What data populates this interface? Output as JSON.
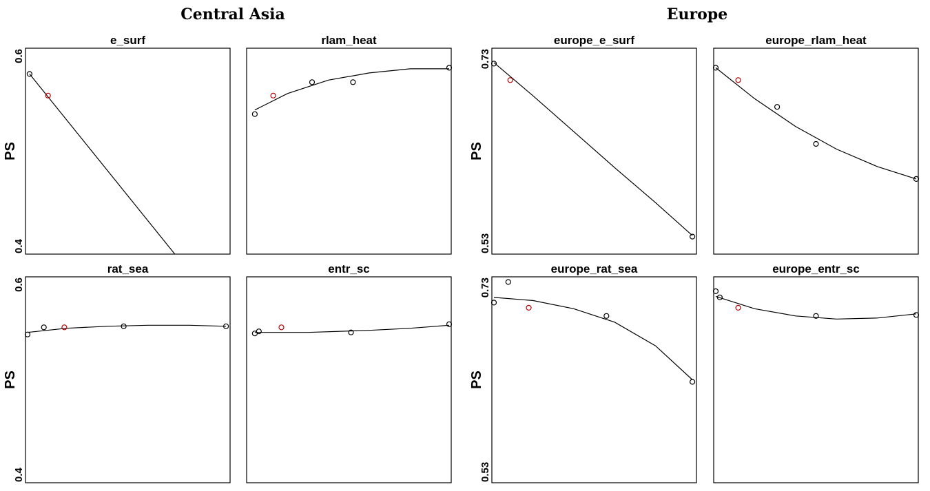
{
  "region_titles": {
    "left": "Central Asia",
    "right": "Europe"
  },
  "ylabel": "PS",
  "colors": {
    "point": "#000000",
    "highlight": "#b30000",
    "line": "#000000"
  },
  "chart_data": [
    {
      "type": "scatter",
      "title": "e_surf",
      "region": "Central Asia",
      "row": 0,
      "col": 0,
      "ylim": [
        0.4,
        0.6
      ],
      "yticks": [
        "0.4",
        "0.6"
      ],
      "xlim": [
        0,
        1
      ],
      "points": [
        {
          "x": 0.02,
          "y": 0.575
        },
        {
          "x": 0.11,
          "y": 0.554,
          "highlight": true
        }
      ],
      "fit": [
        {
          "x": 0.02,
          "y": 0.575
        },
        {
          "x": 0.73,
          "y": 0.4
        }
      ]
    },
    {
      "type": "scatter",
      "title": "rlam_heat",
      "region": "Central Asia",
      "row": 0,
      "col": 1,
      "ylim": [
        0.4,
        0.6
      ],
      "yticks": [],
      "xlim": [
        0,
        1
      ],
      "points": [
        {
          "x": 0.04,
          "y": 0.536
        },
        {
          "x": 0.13,
          "y": 0.554,
          "highlight": true
        },
        {
          "x": 0.32,
          "y": 0.567
        },
        {
          "x": 0.52,
          "y": 0.567
        },
        {
          "x": 0.99,
          "y": 0.581
        }
      ],
      "fit": [
        {
          "x": 0.04,
          "y": 0.54
        },
        {
          "x": 0.2,
          "y": 0.556
        },
        {
          "x": 0.4,
          "y": 0.569
        },
        {
          "x": 0.6,
          "y": 0.576
        },
        {
          "x": 0.8,
          "y": 0.58
        },
        {
          "x": 0.99,
          "y": 0.58
        }
      ]
    },
    {
      "type": "scatter",
      "title": "rat_sea",
      "region": "Central Asia",
      "row": 1,
      "col": 0,
      "ylim": [
        0.4,
        0.6
      ],
      "yticks": [
        "0.4",
        "0.6"
      ],
      "xlim": [
        0,
        1
      ],
      "points": [
        {
          "x": 0.01,
          "y": 0.544
        },
        {
          "x": 0.09,
          "y": 0.551
        },
        {
          "x": 0.19,
          "y": 0.551,
          "highlight": true
        },
        {
          "x": 0.48,
          "y": 0.552
        },
        {
          "x": 0.98,
          "y": 0.552
        }
      ],
      "fit": [
        {
          "x": 0.01,
          "y": 0.546
        },
        {
          "x": 0.2,
          "y": 0.55
        },
        {
          "x": 0.4,
          "y": 0.552
        },
        {
          "x": 0.6,
          "y": 0.553
        },
        {
          "x": 0.8,
          "y": 0.553
        },
        {
          "x": 0.98,
          "y": 0.552
        }
      ]
    },
    {
      "type": "scatter",
      "title": "entr_sc",
      "region": "Central Asia",
      "row": 1,
      "col": 1,
      "ylim": [
        0.4,
        0.6
      ],
      "yticks": [],
      "xlim": [
        0,
        1
      ],
      "points": [
        {
          "x": 0.04,
          "y": 0.545
        },
        {
          "x": 0.06,
          "y": 0.547
        },
        {
          "x": 0.17,
          "y": 0.551,
          "highlight": true
        },
        {
          "x": 0.51,
          "y": 0.546
        },
        {
          "x": 0.99,
          "y": 0.554
        }
      ],
      "fit": [
        {
          "x": 0.04,
          "y": 0.546
        },
        {
          "x": 0.3,
          "y": 0.546
        },
        {
          "x": 0.6,
          "y": 0.548
        },
        {
          "x": 0.8,
          "y": 0.55
        },
        {
          "x": 0.99,
          "y": 0.553
        }
      ]
    },
    {
      "type": "scatter",
      "title": "europe_e_surf",
      "region": "Europe",
      "row": 0,
      "col": 2,
      "ylim": [
        0.53,
        0.73
      ],
      "yticks": [
        "0.53",
        "0.73"
      ],
      "xlim": [
        0,
        1
      ],
      "points": [
        {
          "x": 0.01,
          "y": 0.715
        },
        {
          "x": 0.09,
          "y": 0.699,
          "highlight": true
        },
        {
          "x": 0.98,
          "y": 0.547
        }
      ],
      "fit": [
        {
          "x": 0.01,
          "y": 0.716
        },
        {
          "x": 0.2,
          "y": 0.684
        },
        {
          "x": 0.4,
          "y": 0.649
        },
        {
          "x": 0.6,
          "y": 0.614
        },
        {
          "x": 0.8,
          "y": 0.58
        },
        {
          "x": 0.98,
          "y": 0.548
        }
      ]
    },
    {
      "type": "scatter",
      "title": "europe_rlam_heat",
      "region": "Europe",
      "row": 0,
      "col": 3,
      "ylim": [
        0.53,
        0.73
      ],
      "yticks": [],
      "xlim": [
        0,
        1
      ],
      "points": [
        {
          "x": 0.01,
          "y": 0.711
        },
        {
          "x": 0.12,
          "y": 0.699,
          "highlight": true
        },
        {
          "x": 0.31,
          "y": 0.673
        },
        {
          "x": 0.5,
          "y": 0.637
        },
        {
          "x": 0.99,
          "y": 0.603
        }
      ],
      "fit": [
        {
          "x": 0.01,
          "y": 0.711
        },
        {
          "x": 0.2,
          "y": 0.681
        },
        {
          "x": 0.4,
          "y": 0.654
        },
        {
          "x": 0.6,
          "y": 0.632
        },
        {
          "x": 0.8,
          "y": 0.615
        },
        {
          "x": 0.99,
          "y": 0.603
        }
      ]
    },
    {
      "type": "scatter",
      "title": "europe_rat_sea",
      "region": "Europe",
      "row": 1,
      "col": 2,
      "ylim": [
        0.53,
        0.73
      ],
      "yticks": [
        "0.53",
        "0.73"
      ],
      "xlim": [
        0,
        1
      ],
      "points": [
        {
          "x": 0.01,
          "y": 0.705
        },
        {
          "x": 0.08,
          "y": 0.725
        },
        {
          "x": 0.18,
          "y": 0.7,
          "highlight": true
        },
        {
          "x": 0.56,
          "y": 0.692
        },
        {
          "x": 0.98,
          "y": 0.628
        }
      ],
      "fit": [
        {
          "x": 0.01,
          "y": 0.71
        },
        {
          "x": 0.2,
          "y": 0.707
        },
        {
          "x": 0.4,
          "y": 0.699
        },
        {
          "x": 0.6,
          "y": 0.686
        },
        {
          "x": 0.8,
          "y": 0.663
        },
        {
          "x": 0.98,
          "y": 0.63
        }
      ]
    },
    {
      "type": "scatter",
      "title": "europe_entr_sc",
      "region": "Europe",
      "row": 1,
      "col": 3,
      "ylim": [
        0.53,
        0.73
      ],
      "yticks": [],
      "xlim": [
        0,
        1
      ],
      "points": [
        {
          "x": 0.01,
          "y": 0.716
        },
        {
          "x": 0.03,
          "y": 0.71
        },
        {
          "x": 0.12,
          "y": 0.7,
          "highlight": true
        },
        {
          "x": 0.5,
          "y": 0.692
        },
        {
          "x": 0.99,
          "y": 0.693
        }
      ],
      "fit": [
        {
          "x": 0.01,
          "y": 0.711
        },
        {
          "x": 0.2,
          "y": 0.699
        },
        {
          "x": 0.4,
          "y": 0.692
        },
        {
          "x": 0.6,
          "y": 0.689
        },
        {
          "x": 0.8,
          "y": 0.69
        },
        {
          "x": 0.99,
          "y": 0.694
        }
      ]
    }
  ]
}
